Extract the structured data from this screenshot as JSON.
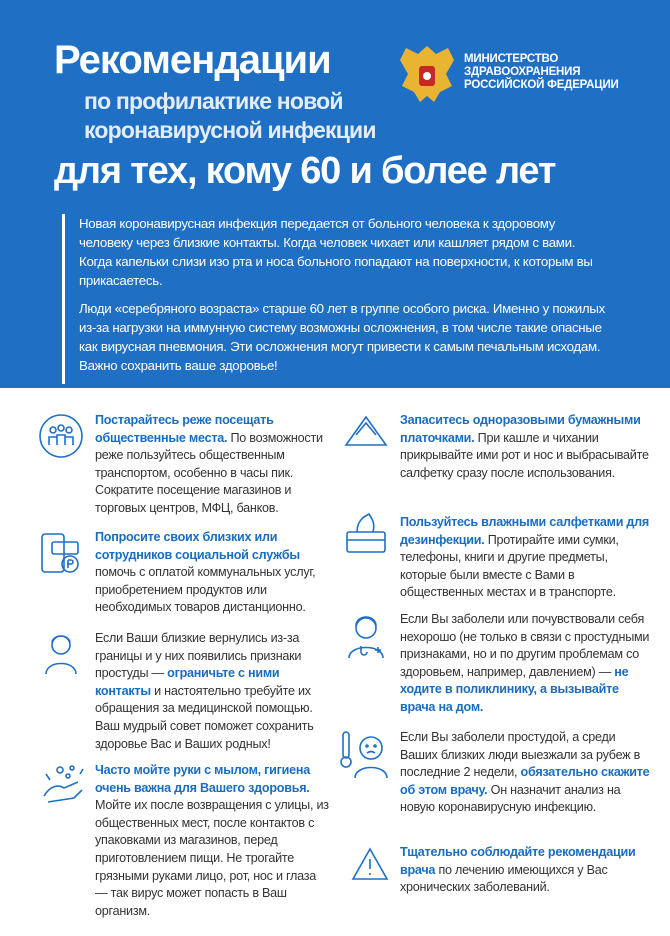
{
  "header": {
    "title": "Рекомендации",
    "subtitle_lines": [
      "по профилактике новой",
      "коронавирусной инфекции"
    ],
    "headline": "для тех, кому 60 и более лет",
    "ministry_lines": [
      "МИНИСТЕРСТВО",
      "ЗДРАВООХРАНЕНИЯ",
      "РОССИЙСКОЙ ФЕДЕРАЦИИ"
    ]
  },
  "intro": [
    "Новая коронавирусная инфекция передается от больного человека к здоровому человеку через близкие контакты. Когда человек чихает или кашляет рядом с вами. Когда капельки слизи изо рта и носа больного попадают на поверхности, к которым вы прикасаетесь.",
    "Люди «серебряного возраста» старше 60 лет в группе особого риска. Именно у пожилых из-за нагрузки на иммунную систему возможны осложнения, в том числе такие опасные как вирусная пневмония. Эти осложнения могут привести к самым печальным исходам. Важно сохранить ваше здоровье!"
  ],
  "items": [
    {
      "segments": [
        {
          "text": "Постарайтесь реже посещать общественные места.",
          "bold": true
        },
        {
          "text": " По возможности реже пользуйтесь общественным транспортом, особенно в часы пик. Сократите посещение магазинов и торговых центров, МФЦ, банков.",
          "bold": false
        }
      ]
    },
    {
      "segments": [
        {
          "text": "Попросите своих близких или сотрудников социальной службы",
          "bold": true
        },
        {
          "text": " помочь с оплатой коммунальных услуг, приобретением продуктов или необходимых товаров дистанционно.",
          "bold": false
        }
      ]
    },
    {
      "segments": [
        {
          "text": "Если Ваши близкие вернулись из-за границы и у них появились признаки простуды — ",
          "bold": false
        },
        {
          "text": "ограничьте с ними контакты",
          "bold": true
        },
        {
          "text": " и настоятельно требуйте их обращения за медицинской помощью. Ваш мудрый совет поможет сохранить здоровье Вас и Ваших родных!",
          "bold": false
        }
      ]
    },
    {
      "segments": [
        {
          "text": "Часто мойте руки с мылом, гигиена очень важна для Вашего здоровья.",
          "bold": true
        },
        {
          "text": " Мойте их после возвращения с улицы, из общественных мест, после контактов с упаковками из магазинов, перед приготовлением пищи. Не трогайте грязными руками лицо, рот, нос и глаза — так вирус может попасть в Ваш организм.",
          "bold": false
        }
      ]
    },
    {
      "segments": [
        {
          "text": "Запаситесь одноразовыми бумажными платочками.",
          "bold": true
        },
        {
          "text": " При кашле и чихании прикрывайте ими рот и нос и выбрасывайте салфетку сразу после использования.",
          "bold": false
        }
      ]
    },
    {
      "segments": [
        {
          "text": "Пользуйтесь влажными салфетками для дезинфекции.",
          "bold": true
        },
        {
          "text": " Протирайте ими сумки, телефоны, книги и другие предметы, которые были вместе с Вами в общественных местах и в транспорте.",
          "bold": false
        }
      ]
    },
    {
      "segments": [
        {
          "text": "Если Вы заболели или почувствовали себя нехорошо (не только в связи с простудными признаками, но и по другим проблемам со здоровьем, например, давлением) — ",
          "bold": false
        },
        {
          "text": "не ходите в поликлинику, а вызывайте врача на дом.",
          "bold": true
        }
      ]
    },
    {
      "segments": [
        {
          "text": "Если Вы заболели простудой, а среди Ваших близких люди выезжали за рубеж в последние 2 недели, ",
          "bold": false
        },
        {
          "text": "обязательно скажите об этом врачу.",
          "bold": true
        },
        {
          "text": " Он назначит анализ на новую коронавирусную инфекцию.",
          "bold": false
        }
      ]
    },
    {
      "segments": [
        {
          "text": "Тщательно соблюдайте рекомендации врача",
          "bold": true
        },
        {
          "text": " по лечению имеющихся у Вас хронических заболеваний.",
          "bold": false
        }
      ]
    }
  ]
}
